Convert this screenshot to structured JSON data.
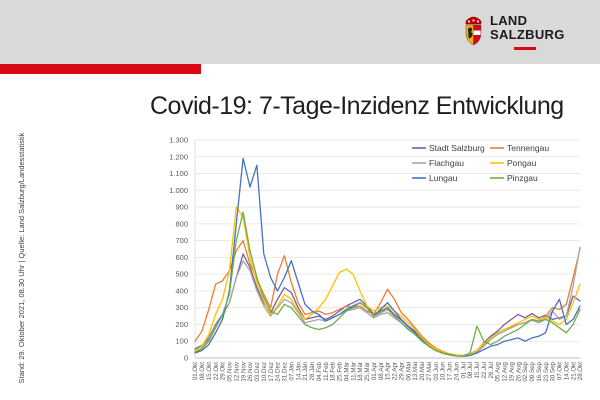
{
  "header": {
    "logo": {
      "line1": "LAND",
      "line2": "SALZBURG"
    },
    "header_gray": "#d9d9d9",
    "accent_red": "#da0812"
  },
  "title": "Covid-19: 7-Tage-Inzidenz Entwicklung",
  "source_note": "Stand: 29. Oktober 2021, 08.30 Uhr | Quelle: Land Salzburg/Landesstatistik",
  "chart_data": {
    "type": "line",
    "title": "",
    "xlabel": "",
    "ylabel": "",
    "ylim": [
      0,
      1300
    ],
    "grid": "horizontal",
    "legend_position": "top-right",
    "y_ticks": {
      "values": [
        0,
        100,
        200,
        300,
        400,
        500,
        600,
        700,
        800,
        900,
        1000,
        1100,
        1200,
        1300
      ],
      "labels": [
        "0",
        "100",
        "200",
        "300",
        "400",
        "500",
        "600",
        "700",
        "800",
        "900",
        "1.000",
        "1.100",
        "1.200",
        "1.300"
      ]
    },
    "x_labels": [
      "01.Okt",
      "08.Okt",
      "15.Okt",
      "22.Okt",
      "29.Okt",
      "05.Nov",
      "12.Nov",
      "19.Nov",
      "26.Nov",
      "03.Dez",
      "10.Dez",
      "17.Dez",
      "24.Dez",
      "31.Dez",
      "07.Jän",
      "14.Jän",
      "21.Jän",
      "28.Jän",
      "04.Feb",
      "11.Feb",
      "18.Feb",
      "25.Feb",
      "04.Mär",
      "11.Mär",
      "18.Mär",
      "25.Mär",
      "01.Apr",
      "08.Apr",
      "15.Apr",
      "22.Apr",
      "29.Apr",
      "06.Mai",
      "13.Mai",
      "20.Mai",
      "27.Mai",
      "03.Jun",
      "10.Jun",
      "17.Jun",
      "24.Jun",
      "01.Jul",
      "08.Jul",
      "15.Jul",
      "22.Jul",
      "29.Jul",
      "05.Aug",
      "12.Aug",
      "19.Aug",
      "26.Aug",
      "02.Sep",
      "09.Sep",
      "16.Sep",
      "23.Sep",
      "30.Sep",
      "07.Okt",
      "14.Okt",
      "21.Okt",
      "28.Okt"
    ],
    "series": [
      {
        "name": "Stadt Salzburg",
        "color": "#7161a8",
        "values": [
          55,
          75,
          120,
          200,
          260,
          330,
          480,
          620,
          540,
          420,
          330,
          270,
          350,
          420,
          390,
          300,
          230,
          240,
          250,
          230,
          250,
          280,
          310,
          330,
          350,
          310,
          260,
          280,
          300,
          260,
          225,
          190,
          160,
          120,
          85,
          55,
          35,
          25,
          18,
          15,
          25,
          45,
          90,
          130,
          160,
          200,
          230,
          260,
          240,
          265,
          240,
          255,
          230,
          240,
          250,
          370,
          340
        ]
      },
      {
        "name": "Tennengau",
        "color": "#ed7d31",
        "values": [
          100,
          160,
          290,
          440,
          460,
          520,
          640,
          700,
          560,
          470,
          380,
          300,
          500,
          610,
          450,
          330,
          260,
          270,
          280,
          260,
          270,
          290,
          310,
          300,
          310,
          280,
          260,
          330,
          410,
          350,
          270,
          230,
          180,
          130,
          90,
          60,
          40,
          25,
          15,
          12,
          20,
          40,
          80,
          120,
          150,
          170,
          185,
          200,
          210,
          230,
          220,
          250,
          300,
          290,
          320,
          480,
          650
        ]
      },
      {
        "name": "Flachgau",
        "color": "#a6a6a6",
        "values": [
          45,
          65,
          110,
          190,
          250,
          330,
          480,
          580,
          520,
          400,
          310,
          250,
          300,
          350,
          330,
          270,
          210,
          220,
          230,
          220,
          240,
          260,
          280,
          290,
          300,
          270,
          240,
          260,
          270,
          240,
          210,
          180,
          150,
          110,
          75,
          50,
          32,
          22,
          15,
          12,
          18,
          35,
          70,
          110,
          140,
          160,
          180,
          200,
          210,
          225,
          210,
          230,
          280,
          230,
          250,
          430,
          660
        ]
      },
      {
        "name": "Pongau",
        "color": "#ffc000",
        "values": [
          40,
          70,
          140,
          260,
          350,
          520,
          900,
          840,
          600,
          450,
          340,
          260,
          310,
          380,
          350,
          280,
          230,
          260,
          300,
          350,
          430,
          510,
          530,
          500,
          400,
          310,
          280,
          300,
          310,
          280,
          250,
          210,
          170,
          120,
          80,
          55,
          35,
          25,
          18,
          15,
          22,
          45,
          85,
          120,
          150,
          170,
          190,
          210,
          230,
          250,
          230,
          240,
          220,
          200,
          230,
          330,
          440
        ]
      },
      {
        "name": "Lungau",
        "color": "#4472c4",
        "values": [
          30,
          45,
          80,
          150,
          230,
          400,
          800,
          1190,
          1020,
          1150,
          620,
          480,
          400,
          480,
          580,
          450,
          320,
          280,
          260,
          220,
          240,
          260,
          290,
          310,
          330,
          300,
          250,
          290,
          330,
          280,
          230,
          190,
          150,
          110,
          70,
          45,
          30,
          20,
          12,
          10,
          15,
          30,
          50,
          70,
          80,
          100,
          110,
          120,
          100,
          120,
          130,
          150,
          280,
          350,
          200,
          230,
          310
        ]
      },
      {
        "name": "Pinzgau",
        "color": "#70ad47",
        "values": [
          35,
          55,
          100,
          180,
          260,
          380,
          700,
          870,
          640,
          480,
          360,
          280,
          260,
          320,
          300,
          250,
          200,
          180,
          170,
          180,
          200,
          240,
          280,
          300,
          330,
          300,
          250,
          270,
          290,
          250,
          210,
          170,
          140,
          100,
          70,
          45,
          28,
          18,
          12,
          10,
          30,
          190,
          100,
          80,
          100,
          130,
          150,
          170,
          200,
          230,
          220,
          230,
          210,
          180,
          150,
          200,
          290
        ]
      }
    ]
  }
}
